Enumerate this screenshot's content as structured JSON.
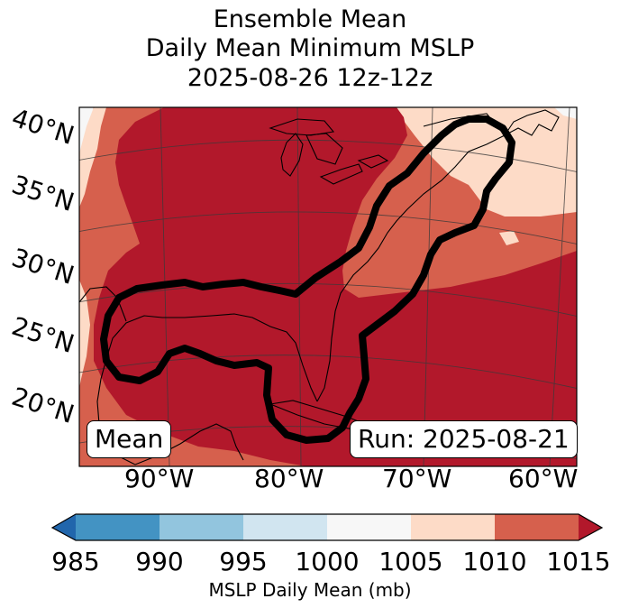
{
  "title": {
    "line1": "Ensemble Mean",
    "line2": "Daily Mean Minimum MSLP",
    "line3": "2025-08-26 12z-12z"
  },
  "map": {
    "lat_labels": [
      "40°N",
      "35°N",
      "30°N",
      "25°N",
      "20°N"
    ],
    "lon_labels": [
      "90°W",
      "80°W",
      "70°W",
      "60°W"
    ],
    "left_box": "Mean",
    "right_box": "Run: 2025-08-21",
    "contour_color": "#000000",
    "outside_color": "#f7f7f7"
  },
  "colorbar": {
    "ticks": [
      "985",
      "990",
      "995",
      "1000",
      "1005",
      "1010",
      "1015"
    ],
    "label": "MSLP Daily Mean (mb)",
    "colors": {
      "below_985": "#2166ac",
      "985_990": "#4393c3",
      "990_995": "#92c5de",
      "995_1000": "#d1e5f0",
      "1000_1005": "#f7f7f7",
      "1005_1010": "#fddbc7",
      "1010_1015": "#d6604d",
      "above_1015": "#b2182b"
    }
  }
}
